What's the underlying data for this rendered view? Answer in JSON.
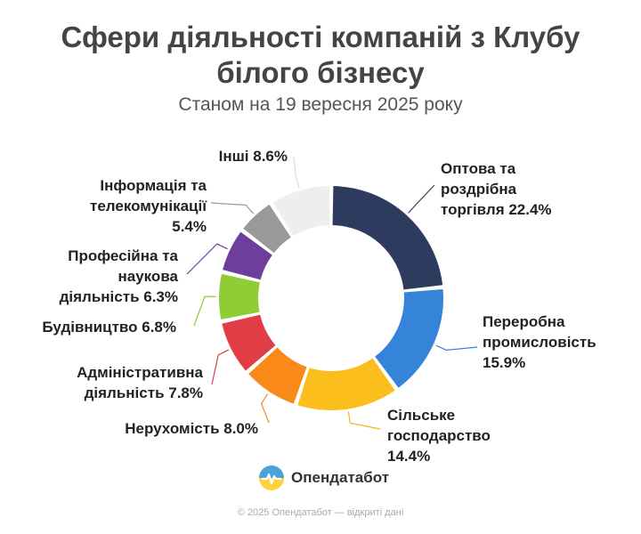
{
  "header": {
    "title_line1": "Сфери діяльності компаній з Клубу",
    "title_line2": "білого бізнесу",
    "subtitle": "Станом на 19 вересня 2025 року"
  },
  "chart_data": {
    "type": "pie",
    "style": "donut",
    "unit": "%",
    "slices": [
      {
        "lines": [
          "Оптова та",
          "роздрібна",
          "торгівля 22.4%"
        ],
        "value": 22.4,
        "color": "#2d3b5e"
      },
      {
        "lines": [
          "Переробна",
          "промисловість",
          "15.9%"
        ],
        "value": 15.9,
        "color": "#3584d9"
      },
      {
        "lines": [
          "Сільське",
          "господарство",
          "14.4%"
        ],
        "value": 14.4,
        "color": "#fbbe1c"
      },
      {
        "lines": [
          "Нерухомість 8.0%"
        ],
        "value": 8.0,
        "color": "#f98a1a"
      },
      {
        "lines": [
          "Адміністративна",
          "діяльність 7.8%"
        ],
        "value": 7.8,
        "color": "#e13d47"
      },
      {
        "lines": [
          "Будівництво 6.8%"
        ],
        "value": 6.8,
        "color": "#8fcc35"
      },
      {
        "lines": [
          "Професійна та",
          "наукова",
          "діяльність 6.3%"
        ],
        "value": 6.3,
        "color": "#6e3e9c"
      },
      {
        "lines": [
          "Інформація та",
          "телекомунікації",
          "5.4%"
        ],
        "value": 5.4,
        "color": "#999999"
      },
      {
        "lines": [
          "Інші 8.6%"
        ],
        "value": 8.6,
        "color": "#eeeeee"
      }
    ],
    "leader_colors": [
      "#2d3b5e",
      "#3584d9",
      "#f3b511",
      "#f98a1a",
      "#e13d47",
      "#8fcc35",
      "#6e3e9c",
      "#999999",
      "#dddddd"
    ]
  },
  "branding": {
    "logo_text": "Опендатабот",
    "footer": "© 2025 Опендатабот — відкриті дані"
  }
}
